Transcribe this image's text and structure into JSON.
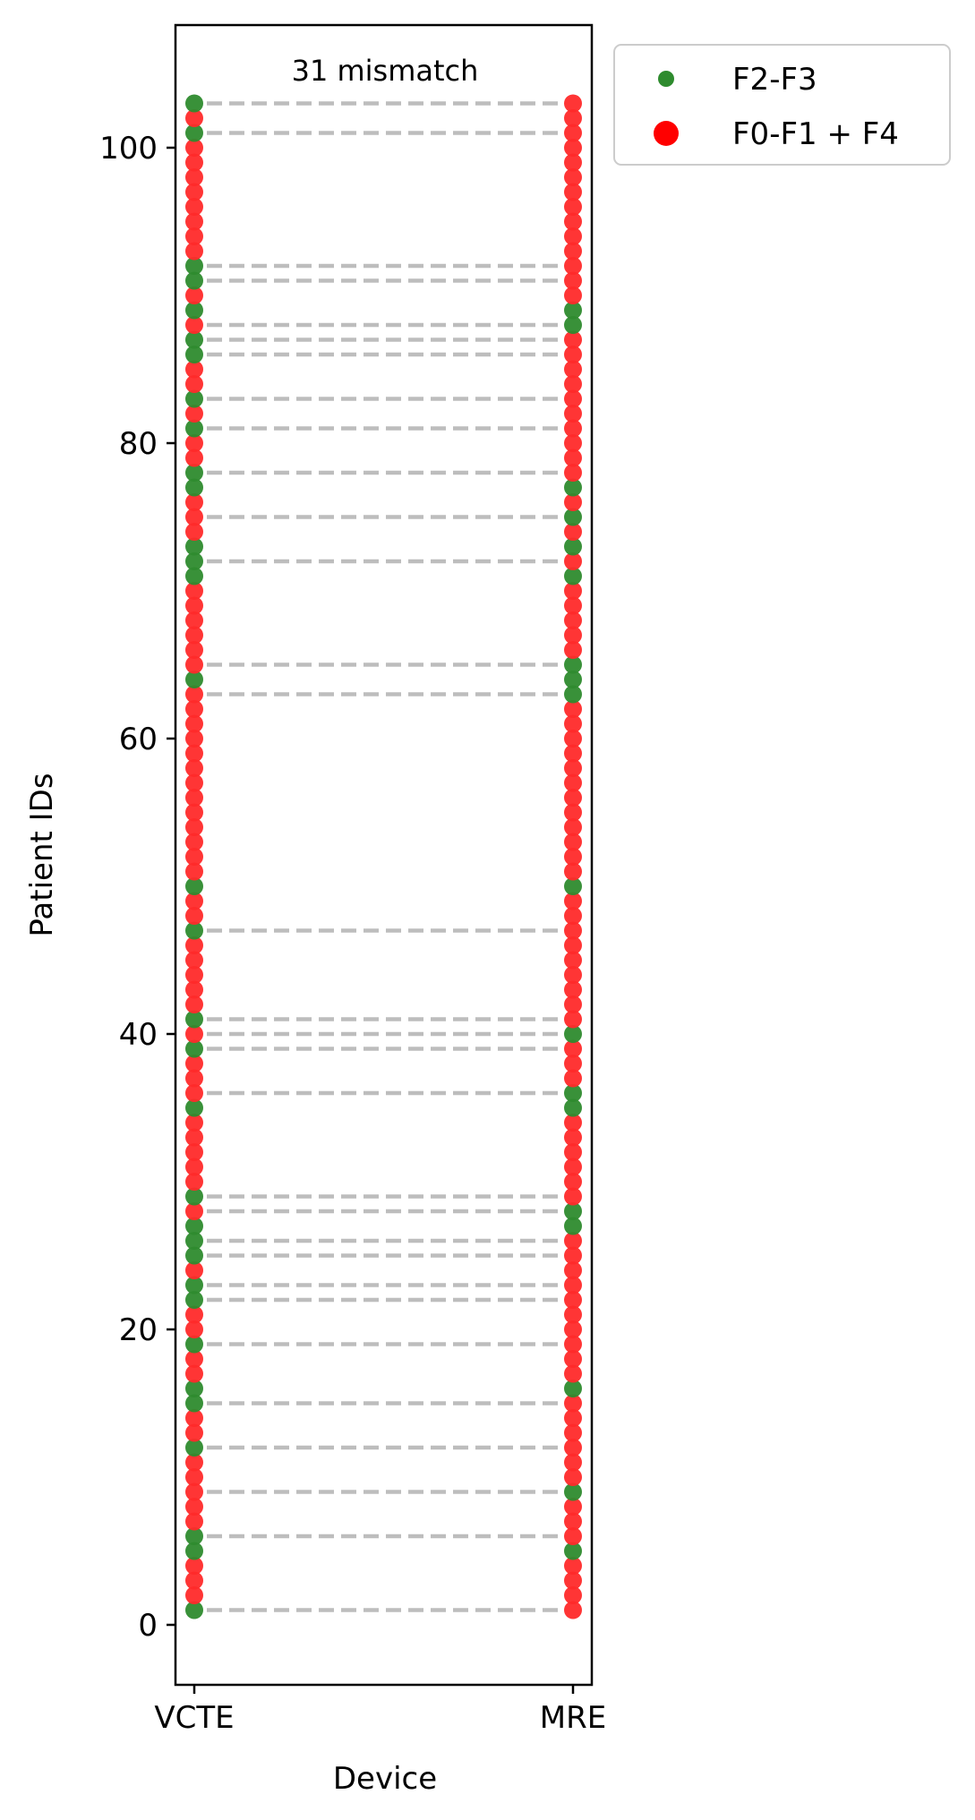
{
  "chart_data": {
    "type": "scatter",
    "annotation": "31 mismatch",
    "xlabel": "Device",
    "ylabel": "Patient IDs",
    "categories": [
      "VCTE",
      "MRE"
    ],
    "ylim": [
      -4,
      108
    ],
    "yticks": [
      0,
      20,
      40,
      60,
      80,
      100
    ],
    "patient_count": 103,
    "colors": {
      "F2-F3": "#2e8b2e",
      "F0-F1 + F4": "#ff2a2a",
      "mismatch_line": "#bdbdbd"
    },
    "legend": {
      "placement": "outside-top-right",
      "entries": [
        {
          "label": "F2-F3",
          "color": "#2e8b2e"
        },
        {
          "label": "F0-F1 + F4",
          "color": "#ff0000"
        }
      ]
    },
    "series": [
      {
        "device": "VCTE",
        "name": "F2-F3",
        "ids": [
          1,
          5,
          6,
          12,
          15,
          16,
          19,
          22,
          23,
          25,
          26,
          27,
          29,
          35,
          39,
          41,
          47,
          50,
          64,
          71,
          72,
          73,
          77,
          78,
          81,
          83,
          86,
          87,
          89,
          91,
          92,
          101,
          103
        ]
      },
      {
        "device": "MRE",
        "name": "F2-F3",
        "ids": [
          5,
          9,
          16,
          27,
          28,
          35,
          36,
          40,
          50,
          63,
          64,
          65,
          71,
          73,
          75,
          77,
          88,
          89
        ]
      }
    ],
    "mismatch_ids": [
      1,
      6,
      9,
      12,
      15,
      19,
      22,
      23,
      25,
      26,
      28,
      29,
      36,
      39,
      40,
      41,
      47,
      63,
      65,
      72,
      75,
      78,
      81,
      83,
      86,
      87,
      88,
      91,
      92,
      101,
      103
    ]
  }
}
